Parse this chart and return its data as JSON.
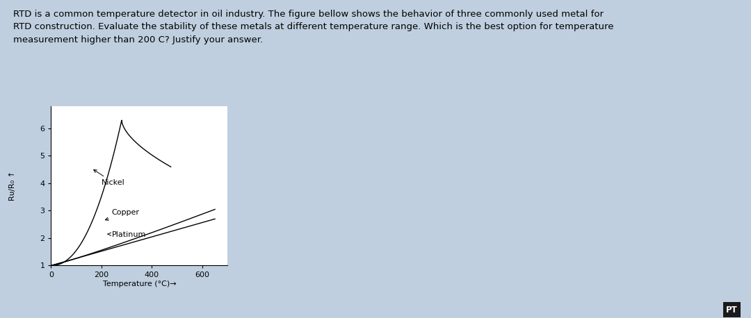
{
  "title_text": "RTD is a common temperature detector in oil industry. The figure bellow shows the behavior of three commonly used metal for\nRTD construction. Evaluate the stability of these metals at different temperature range. Which is the best option for temperature\nmeasurement higher than 200 C? Justify your answer.",
  "xlabel": "Temperature (°C)→",
  "ylabel": "Rᴜ/R₀ ↑",
  "xlim": [
    0,
    700
  ],
  "ylim": [
    1,
    6.8
  ],
  "yticks": [
    1,
    2,
    3,
    4,
    5,
    6
  ],
  "xticks": [
    0,
    200,
    400,
    600
  ],
  "bg_color": "#bfcfdf",
  "plot_bg_color": "#ffffff",
  "text_color": "#000000",
  "line_color": "#000000",
  "nickel_label": "Nickel",
  "copper_label": "Copper",
  "platinum_label": "Platinum",
  "pt_label": "PT",
  "title_fontsize": 9.5,
  "axis_fontsize": 8,
  "label_fontsize": 8,
  "figsize": [
    10.8,
    4.58
  ],
  "dpi": 100
}
